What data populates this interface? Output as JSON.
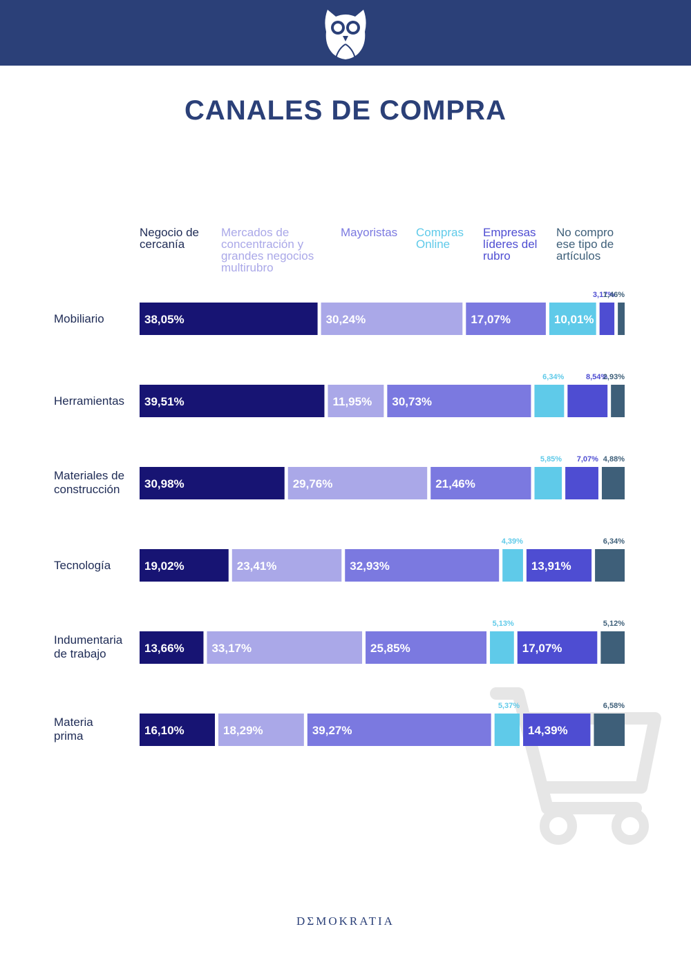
{
  "title": "CANALES DE COMPRA",
  "footer": {
    "brand": "DΣMOKRATIA"
  },
  "colors": {
    "header": "#2b4078",
    "negocio": "#171473",
    "mercados": "#aaa8e8",
    "mayoristas": "#7b79e0",
    "online": "#5fcae9",
    "empresas": "#4e4dd2",
    "no_compro": "#3e5f79"
  },
  "chart_data": {
    "type": "bar",
    "stacked": true,
    "orientation": "horizontal",
    "title": "CANALES DE COMPRA",
    "categories": [
      "Mobiliario",
      "Herramientas",
      "Materiales de\nconstrucción",
      "Tecnología",
      "Indumentaria\nde trabajo",
      "Materia\nprima"
    ],
    "series": [
      {
        "name": "Negocio de\ncercanía",
        "color": "#171473",
        "label_color": "#1e2b55",
        "values": [
          38.05,
          39.51,
          30.98,
          19.02,
          13.66,
          16.1
        ],
        "labels": [
          "38,05%",
          "39,51%",
          "30,98%",
          "19,02%",
          "13,66%",
          "16,10%"
        ]
      },
      {
        "name": "Mercados de\nconcentración y\ngrandes negocios\nmultirubro",
        "color": "#aaa8e8",
        "label_color": "#aaa8e8",
        "values": [
          30.24,
          11.95,
          29.76,
          23.41,
          33.17,
          18.29
        ],
        "labels": [
          "30,24%",
          "11,95%",
          "29,76%",
          "23,41%",
          "33,17%",
          "18,29%"
        ]
      },
      {
        "name": "Mayoristas",
        "color": "#7b79e0",
        "label_color": "#7b79e0",
        "values": [
          17.07,
          30.73,
          21.46,
          32.93,
          25.85,
          39.27
        ],
        "labels": [
          "17,07%",
          "30,73%",
          "21,46%",
          "32,93%",
          "25,85%",
          "39,27%"
        ]
      },
      {
        "name": "Compras\nOnline",
        "color": "#5fcae9",
        "label_color": "#5fcae9",
        "values": [
          10.01,
          6.34,
          5.85,
          4.39,
          5.13,
          5.37
        ],
        "labels": [
          "10,01%",
          "6,34%",
          "5,85%",
          "4,39%",
          "5,13%",
          "5,37%"
        ]
      },
      {
        "name": "Empresas\nlíderes del\nrubro",
        "color": "#4e4dd2",
        "label_color": "#4e4dd2",
        "values": [
          3.17,
          8.54,
          7.07,
          13.91,
          17.07,
          14.39
        ],
        "labels": [
          "3,17%",
          "8,54%",
          "7,07%",
          "13,91%",
          "17,07%",
          "14,39%"
        ]
      },
      {
        "name": "No compro\nese tipo de\nartículos",
        "color": "#3e5f79",
        "label_color": "#3e5f79",
        "values": [
          1.46,
          2.93,
          4.88,
          6.34,
          5.12,
          6.58
        ],
        "labels": [
          "1,46%",
          "2,93%",
          "4,88%",
          "6,34%",
          "5,12%",
          "6,58%"
        ]
      }
    ]
  }
}
